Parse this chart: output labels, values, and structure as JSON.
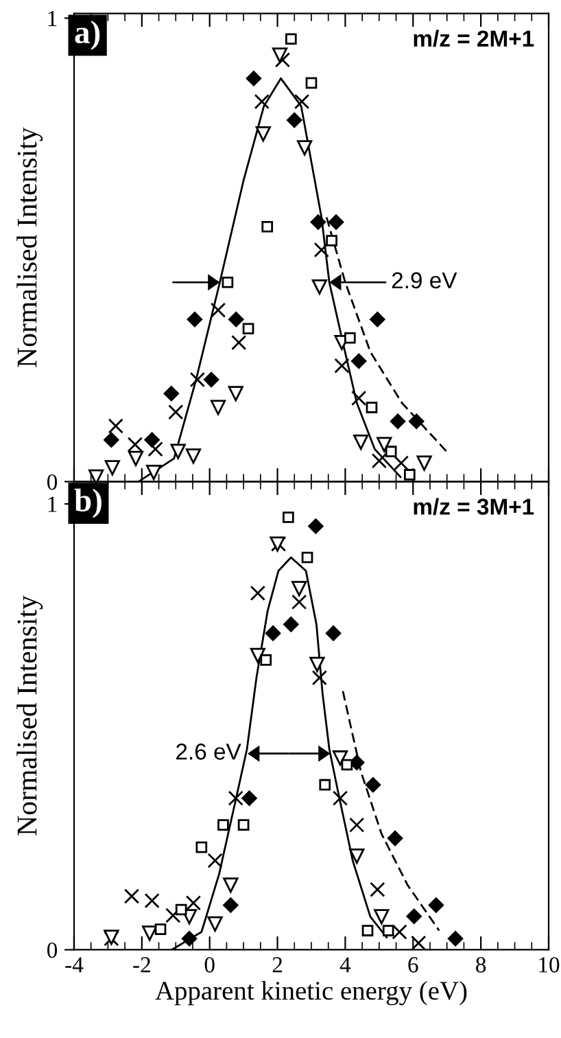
{
  "chart_data": [
    {
      "type": "scatter",
      "ylabel": "Normalised Intensity",
      "xlim": [
        -4,
        10
      ],
      "xticks": [
        -4,
        -2,
        0,
        2,
        4,
        6,
        8,
        10
      ],
      "ylim": [
        0,
        1.01
      ],
      "yticks": [
        0,
        1
      ],
      "tick_labels": "y",
      "annotations": [
        "a)",
        "m/z = 2M+1",
        {
          "text": "2.9 eV",
          "x": 3.53,
          "y": 0.43
        }
      ],
      "series": [
        {
          "type": "scatter",
          "marker": "diamond",
          "color": "#000000",
          "x": [
            -2.9,
            -1.7,
            -1.13,
            -0.44,
            0.05,
            0.78,
            1.3,
            2.5,
            3.2,
            3.73,
            4.4,
            4.95,
            5.55,
            6.1
          ],
          "values": [
            0.09,
            0.09,
            0.19,
            0.35,
            0.22,
            0.35,
            0.87,
            0.78,
            0.56,
            0.56,
            0.26,
            0.35,
            0.13,
            0.13
          ]
        },
        {
          "type": "scatter",
          "marker": "cross",
          "color": "#000000",
          "x": [
            -2.77,
            -2.2,
            -1.6,
            -1.0,
            -0.36,
            0.25,
            0.86,
            1.54,
            2.15,
            2.72,
            3.3,
            3.9,
            4.4,
            5.0,
            5.65
          ],
          "values": [
            0.12,
            0.08,
            0.07,
            0.15,
            0.22,
            0.37,
            0.3,
            0.82,
            0.91,
            0.82,
            0.5,
            0.25,
            0.18,
            0.045,
            0.04
          ]
        },
        {
          "type": "scatter",
          "marker": "triangle",
          "color": "#000000",
          "x": [
            -3.35,
            -2.87,
            -2.18,
            -1.65,
            -0.93,
            -0.48,
            0.25,
            0.77,
            1.58,
            2.07,
            2.8,
            3.24,
            3.9,
            4.46,
            5.15,
            6.33
          ],
          "values": [
            0.01,
            0.03,
            0.05,
            0.02,
            0.065,
            0.055,
            0.16,
            0.19,
            0.75,
            0.92,
            0.72,
            0.42,
            0.3,
            0.085,
            0.08,
            0.04
          ]
        },
        {
          "type": "scatter",
          "marker": "square",
          "color": "#000000",
          "x": [
            0.53,
            1.14,
            1.7,
            2.4,
            3.0,
            3.6,
            4.14,
            4.78,
            5.35,
            5.9
          ],
          "values": [
            0.43,
            0.33,
            0.55,
            0.955,
            0.86,
            0.52,
            0.31,
            0.16,
            0.065,
            0.015
          ]
        },
        {
          "type": "line",
          "marker": "none",
          "line_style": "solid",
          "color": "#000000",
          "x": [
            -2.1,
            -1.05,
            -0.4,
            0.3,
            1.0,
            1.6,
            2.1,
            2.7,
            3.3,
            3.53,
            3.93,
            4.34,
            4.87,
            5.63
          ],
          "values": [
            0,
            0.05,
            0.22,
            0.43,
            0.65,
            0.81,
            0.87,
            0.81,
            0.57,
            0.43,
            0.3,
            0.17,
            0.07,
            0.01
          ]
        },
        {
          "type": "line",
          "marker": "none",
          "line_style": "dashed",
          "color": "#000000",
          "x": [
            3.45,
            4.0,
            4.74,
            5.67,
            7.05
          ],
          "values": [
            0.57,
            0.43,
            0.28,
            0.17,
            0.06
          ]
        }
      ]
    },
    {
      "type": "scatter",
      "xlabel": "Apparent kinetic energy (eV)",
      "ylabel": "Normalised Intensity",
      "xlim": [
        -4,
        10
      ],
      "xticks": [
        -4,
        -2,
        0,
        2,
        4,
        6,
        8,
        10
      ],
      "ylim": [
        0,
        1.05
      ],
      "yticks": [
        0,
        1
      ],
      "annotations": [
        "b)",
        "m/z = 3M+1",
        {
          "text": "2.6 eV",
          "x": 1.12,
          "y": 0.44
        }
      ],
      "series": [
        {
          "type": "scatter",
          "marker": "diamond",
          "color": "#000000",
          "x": [
            -0.6,
            0.62,
            1.17,
            1.87,
            2.4,
            3.13,
            3.65,
            4.34,
            4.82,
            5.47,
            6.03,
            6.68,
            7.25
          ],
          "values": [
            0.025,
            0.1,
            0.34,
            0.71,
            0.73,
            0.95,
            0.71,
            0.42,
            0.37,
            0.25,
            0.075,
            0.1,
            0.025
          ]
        },
        {
          "type": "scatter",
          "marker": "cross",
          "color": "#000000",
          "x": [
            -2.9,
            -2.3,
            -1.7,
            -1.08,
            -0.48,
            0.16,
            0.77,
            1.42,
            2.03,
            2.64,
            3.24,
            3.85,
            4.34,
            4.95,
            5.6,
            6.16
          ],
          "values": [
            0.025,
            0.12,
            0.11,
            0.077,
            0.105,
            0.2,
            0.34,
            0.8,
            0.91,
            0.78,
            0.61,
            0.34,
            0.28,
            0.135,
            0.04,
            0.015
          ]
        },
        {
          "type": "scatter",
          "marker": "triangle",
          "color": "#000000",
          "x": [
            -2.9,
            -1.77,
            -0.6,
            0.16,
            0.62,
            1.42,
            2.0,
            2.64,
            3.17,
            3.85,
            4.34,
            5.07
          ],
          "values": [
            0.028,
            0.037,
            0.074,
            0.058,
            0.145,
            0.66,
            0.91,
            0.81,
            0.64,
            0.43,
            0.21,
            0.074
          ]
        },
        {
          "type": "scatter",
          "marker": "square",
          "color": "#000000",
          "x": [
            -1.45,
            -0.84,
            -0.24,
            0.4,
            1.0,
            1.66,
            2.32,
            2.88,
            3.4,
            4.05,
            4.66,
            5.27
          ],
          "values": [
            0.046,
            0.09,
            0.23,
            0.28,
            0.28,
            0.65,
            0.97,
            0.88,
            0.37,
            0.415,
            0.043,
            0.043
          ]
        },
        {
          "type": "line",
          "marker": "none",
          "line_style": "solid",
          "color": "#000000",
          "x": [
            -1.12,
            -0.24,
            0.28,
            0.81,
            1.1,
            1.38,
            1.71,
            2.03,
            2.4,
            2.84,
            3.15,
            3.33,
            3.53,
            3.8,
            4.22,
            4.74,
            5.22
          ],
          "values": [
            0,
            0.04,
            0.17,
            0.35,
            0.45,
            0.61,
            0.76,
            0.85,
            0.88,
            0.85,
            0.73,
            0.575,
            0.45,
            0.35,
            0.2,
            0.074,
            0.028
          ]
        },
        {
          "type": "line",
          "marker": "none",
          "line_style": "dashed",
          "color": "#000000",
          "x": [
            3.93,
            4.46,
            5.07,
            5.84,
            6.77
          ],
          "values": [
            0.58,
            0.4,
            0.26,
            0.145,
            0.043
          ]
        }
      ]
    }
  ]
}
